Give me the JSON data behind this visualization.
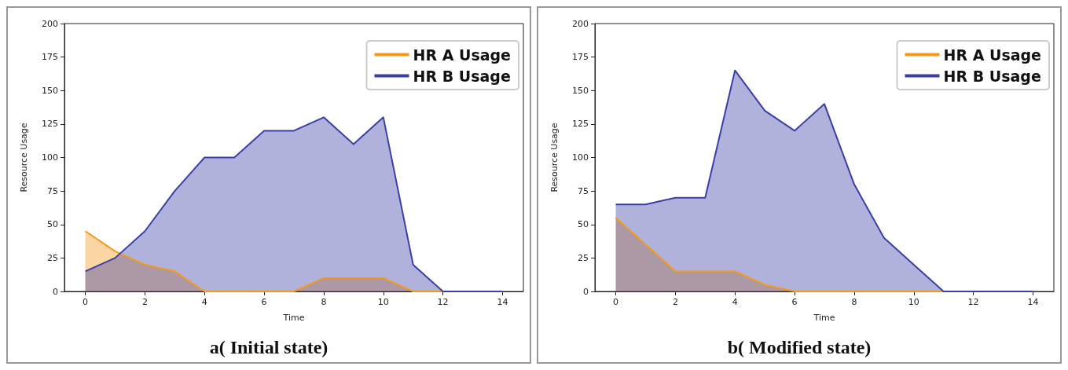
{
  "chart_data": [
    {
      "type": "area",
      "title": "a( Initial state)",
      "xlabel": "Time",
      "ylabel": "Resource Usage",
      "x": [
        0,
        1,
        2,
        3,
        4,
        5,
        6,
        7,
        8,
        9,
        10,
        11,
        12,
        13,
        14
      ],
      "series": [
        {
          "name": "HR A Usage",
          "color": "#f5991c",
          "values": [
            45,
            30,
            20,
            15,
            0,
            0,
            0,
            0,
            10,
            10,
            10,
            0,
            0,
            0,
            0
          ]
        },
        {
          "name": "HR B Usage",
          "color": "#3a3fa8",
          "values": [
            15,
            25,
            45,
            75,
            100,
            100,
            120,
            120,
            130,
            110,
            130,
            20,
            0,
            0,
            0
          ]
        }
      ],
      "xlim": [
        -0.7,
        14.7
      ],
      "xticks": [
        0,
        2,
        4,
        6,
        8,
        10,
        12,
        14
      ],
      "ylim": [
        0,
        200
      ],
      "yticks": [
        0,
        25,
        50,
        75,
        100,
        125,
        150,
        175,
        200
      ],
      "legend": "top right",
      "grid": false
    },
    {
      "type": "area",
      "title": "b( Modified state)",
      "xlabel": "Time",
      "ylabel": "Resource Usage",
      "x": [
        0,
        1,
        2,
        3,
        4,
        5,
        6,
        7,
        8,
        9,
        10,
        11,
        12,
        13,
        14
      ],
      "series": [
        {
          "name": "HR A Usage",
          "color": "#f5991c",
          "values": [
            55,
            35,
            15,
            15,
            15,
            5,
            0,
            0,
            0,
            0,
            0,
            0,
            0,
            0,
            0
          ]
        },
        {
          "name": "HR B Usage",
          "color": "#3a3fa8",
          "values": [
            65,
            65,
            70,
            70,
            165,
            135,
            120,
            140,
            80,
            40,
            20,
            0,
            0,
            0,
            0
          ]
        }
      ],
      "xlim": [
        -0.7,
        14.7
      ],
      "xticks": [
        0,
        2,
        4,
        6,
        8,
        10,
        12,
        14
      ],
      "ylim": [
        0,
        200
      ],
      "yticks": [
        0,
        25,
        50,
        75,
        100,
        125,
        150,
        175,
        200
      ],
      "legend": "top right",
      "grid": false
    }
  ]
}
